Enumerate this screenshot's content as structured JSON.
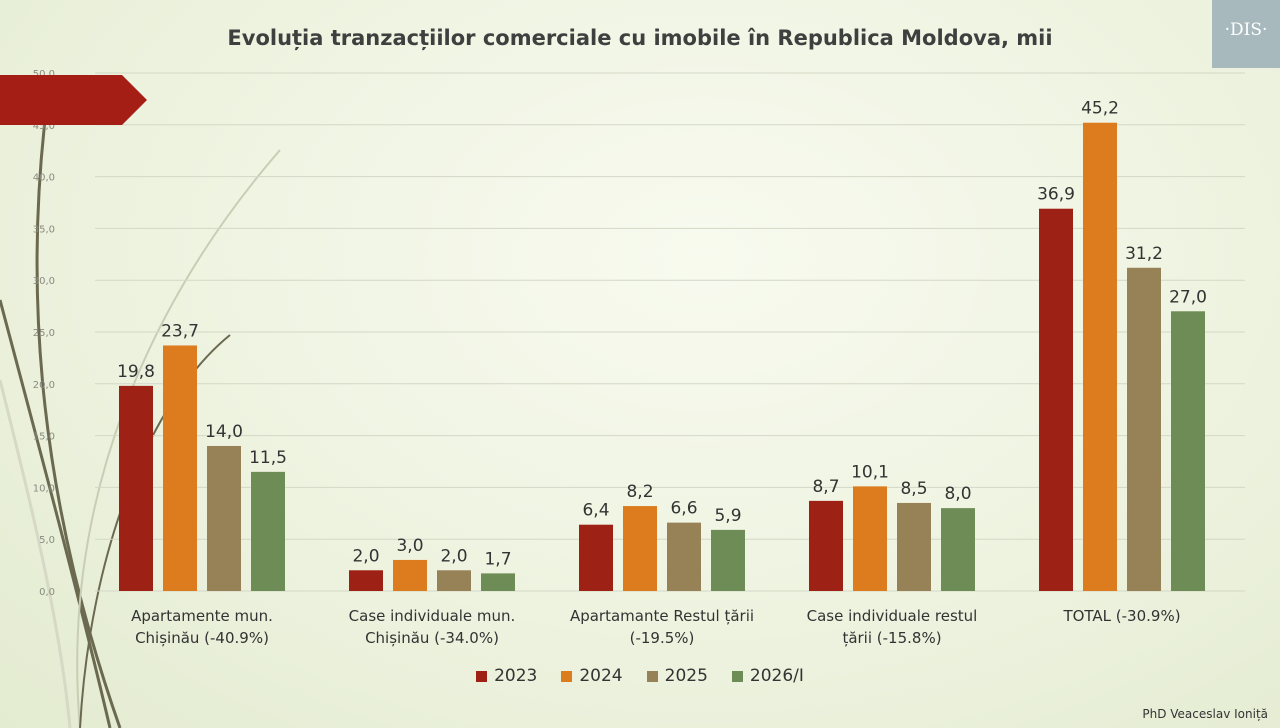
{
  "header": {
    "title": "Evoluția tranzacțiilor comerciale cu imobile în Republica Moldova, mii",
    "logo_text": "DIS"
  },
  "footer": {
    "author": "PhD Veaceslav Ioniță"
  },
  "colors": {
    "2023": "#9e2116",
    "2024": "#dd7b1f",
    "2025": "#978257",
    "2026/I": "#6e8c55"
  },
  "chart_data": {
    "type": "bar",
    "title": "Evoluția tranzacțiilor comerciale cu imobile în Republica Moldova, mii",
    "categories": [
      [
        "Apartamente mun.",
        "Chișinău (-40.9%)"
      ],
      [
        "Case individuale mun.",
        "Chișinău (-34.0%)"
      ],
      [
        "Apartamante Restul țării",
        "(-19.5%)"
      ],
      [
        "Case individuale restul",
        "țării (-15.8%)"
      ],
      [
        "TOTAL (-30.9%)"
      ]
    ],
    "series": [
      {
        "name": "2023",
        "values": [
          19.8,
          2.0,
          6.4,
          8.7,
          36.9
        ],
        "labels": [
          "19,8",
          "2,0",
          "6,4",
          "8,7",
          "36,9"
        ]
      },
      {
        "name": "2024",
        "values": [
          23.7,
          3.0,
          8.2,
          10.1,
          45.2
        ],
        "labels": [
          "23,7",
          "3,0",
          "8,2",
          "10,1",
          "45,2"
        ]
      },
      {
        "name": "2025",
        "values": [
          14.0,
          2.0,
          6.6,
          8.5,
          31.2
        ],
        "labels": [
          "14,0",
          "2,0",
          "6,6",
          "8,5",
          "31,2"
        ]
      },
      {
        "name": "2026/I",
        "values": [
          11.5,
          1.7,
          5.9,
          8.0,
          27.0
        ],
        "labels": [
          "11,5",
          "1,7",
          "5,9",
          "8,0",
          "27,0"
        ]
      }
    ],
    "ylim": [
      0,
      50
    ],
    "yticks": [
      "0,0",
      "5,0",
      "10,0",
      "15,0",
      "20,0",
      "25,0",
      "30,0",
      "35,0",
      "40,0",
      "45,0",
      "50,0"
    ],
    "grid": true,
    "legend": "bottom",
    "xlabel": "",
    "ylabel": ""
  }
}
